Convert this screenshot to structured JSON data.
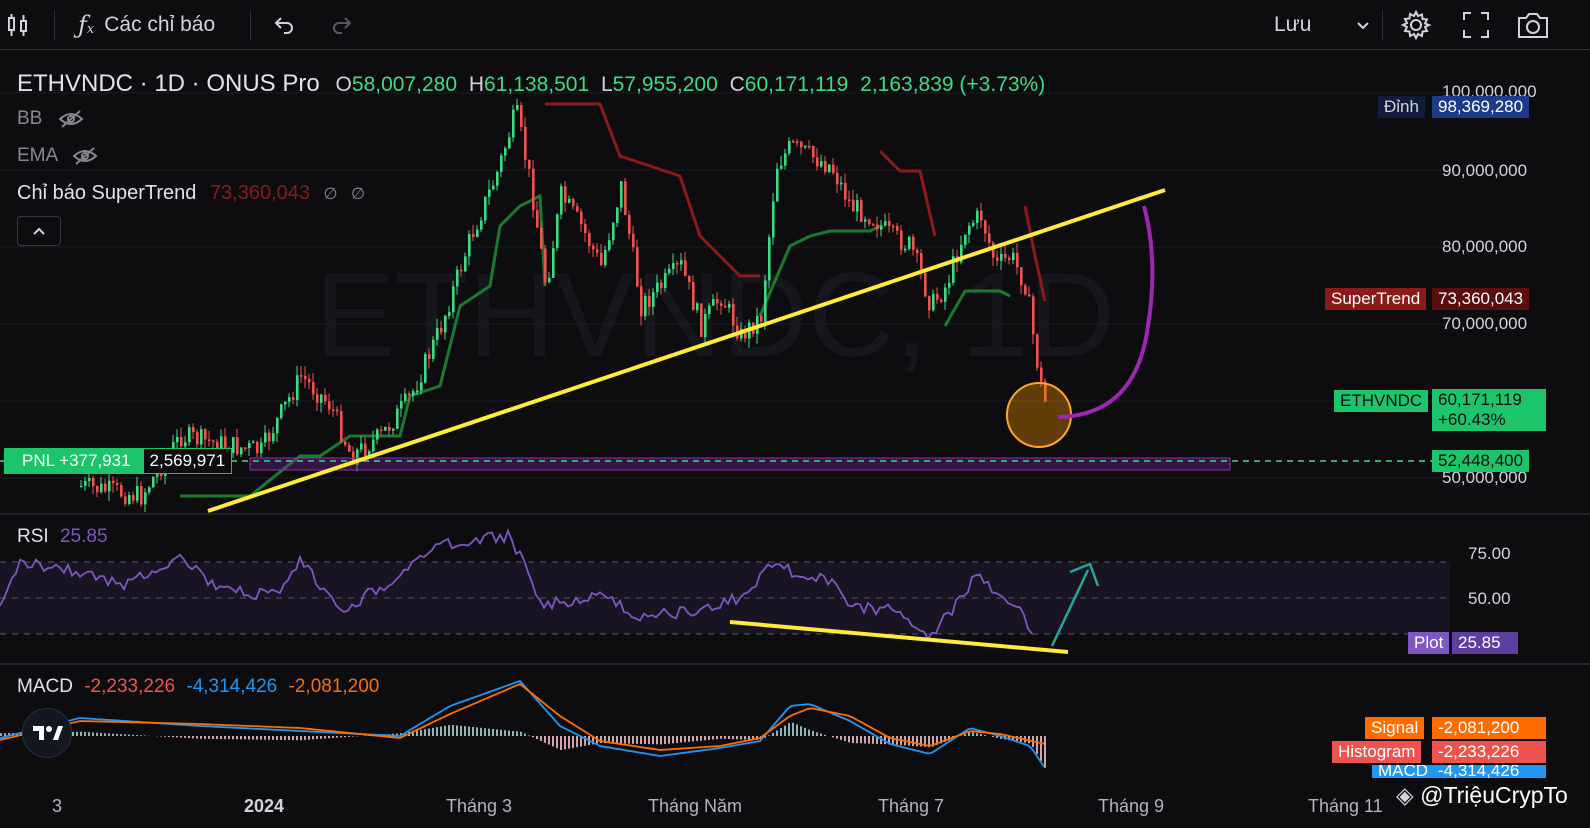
{
  "toolbar": {
    "indicators_label": "Các chỉ báo",
    "save_label": "Lưu"
  },
  "symbol": {
    "title": "ETHVNDC · 1D · ONUS Pro",
    "watermark": "ETHVNDC, 1D",
    "o_label": "O",
    "o_value": "58,007,280",
    "h_label": "H",
    "h_value": "61,138,501",
    "l_label": "L",
    "l_value": "57,955,200",
    "c_label": "C",
    "c_value": "60,171,119",
    "change": "2,163,839 (+3.73%)"
  },
  "indicators": {
    "bb": "BB",
    "ema": "EMA",
    "supertrend_label": "Chỉ báo SuperTrend",
    "supertrend_value": "73,360,043",
    "placeholder_a": "∅",
    "placeholder_b": "∅"
  },
  "price_axis": {
    "ticks": [
      "100,000,000",
      "90,000,000",
      "80,000,000",
      "70,000,000",
      "50,000,000"
    ],
    "top_label": "Đỉnh",
    "top_value": "98,369,280",
    "supertrend_label": "SuperTrend",
    "supertrend_value": "73,360,043",
    "symbol_label": "ETHVNDC",
    "last_price": "60,171,119",
    "last_change": "+60.43%",
    "position_price": "52,448,400"
  },
  "position": {
    "pnl": "PNL +377,931",
    "qty": "2,569,971"
  },
  "rsi": {
    "label": "RSI",
    "value": "25.85",
    "ticks": [
      "75.00",
      "50.00"
    ],
    "plot_label": "Plot",
    "plot_value": "25.85"
  },
  "macd": {
    "label": "MACD",
    "v1": "-2,233,226",
    "v2": "-4,314,426",
    "v3": "-2,081,200",
    "signal_label": "Signal",
    "signal_value": "-2,081,200",
    "hist_label": "Histogram",
    "hist_value": "-2,233,226",
    "macd_label": "MACD",
    "macd_value": "-4,314,426"
  },
  "time_axis": [
    "3",
    "2024",
    "Tháng 3",
    "Tháng Năm",
    "Tháng 7",
    "Tháng 9",
    "Tháng 11"
  ],
  "watermark_credit": "@TriệuCrypTo",
  "colors": {
    "up": "#26a69a",
    "up_bright": "#3ddc84",
    "down": "#ef5350",
    "supertrend_up": "#1b7a2e",
    "supertrend_down": "#8b1a1a",
    "trendline": "#ffeb3b",
    "rsi": "#7e57c2",
    "macd": "#2196f3",
    "signal": "#ff6d00"
  }
}
